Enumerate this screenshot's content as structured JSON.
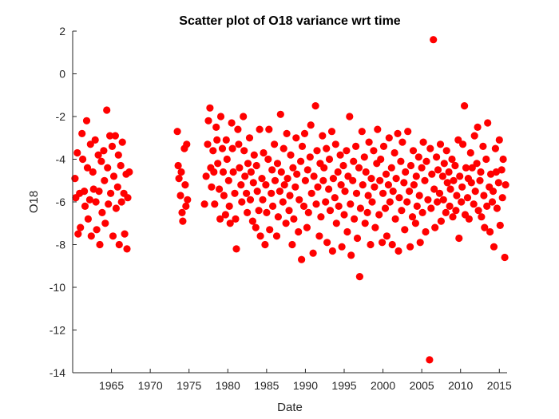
{
  "chart_data": {
    "type": "scatter",
    "title": "Scatter plot of O18 variance wrt time",
    "xlabel": "Date",
    "ylabel": "O18",
    "xlim": [
      1960,
      2016
    ],
    "ylim": [
      -14,
      2
    ],
    "x_ticks": [
      1965,
      1970,
      1975,
      1980,
      1985,
      1990,
      1995,
      2000,
      2005,
      2010,
      2015
    ],
    "y_ticks": [
      2,
      0,
      -2,
      -4,
      -6,
      -8,
      -10,
      -12,
      -14
    ],
    "grid": false,
    "marker_color": "#ff0000",
    "points": [
      [
        1960.3,
        -4.9
      ],
      [
        1960.4,
        -5.8
      ],
      [
        1960.6,
        -3.7
      ],
      [
        1960.7,
        -7.5
      ],
      [
        1960.9,
        -5.6
      ],
      [
        1961.0,
        -7.2
      ],
      [
        1961.2,
        -2.8
      ],
      [
        1961.3,
        -4.0
      ],
      [
        1961.5,
        -5.5
      ],
      [
        1961.6,
        -6.2
      ],
      [
        1961.8,
        -2.2
      ],
      [
        1961.9,
        -4.4
      ],
      [
        1962.0,
        -6.8
      ],
      [
        1962.2,
        -5.9
      ],
      [
        1962.3,
        -3.3
      ],
      [
        1962.4,
        -7.6
      ],
      [
        1962.6,
        -4.6
      ],
      [
        1962.7,
        -5.4
      ],
      [
        1962.9,
        -3.1
      ],
      [
        1963.0,
        -6.0
      ],
      [
        1963.1,
        -7.3
      ],
      [
        1963.3,
        -3.8
      ],
      [
        1963.4,
        -5.5
      ],
      [
        1963.5,
        -8.0
      ],
      [
        1963.7,
        -4.1
      ],
      [
        1963.8,
        -6.5
      ],
      [
        1964.0,
        -3.6
      ],
      [
        1964.1,
        -5.0
      ],
      [
        1964.2,
        -7.0
      ],
      [
        1964.4,
        -1.7
      ],
      [
        1964.5,
        -4.4
      ],
      [
        1964.6,
        -6.1
      ],
      [
        1964.8,
        -2.9
      ],
      [
        1964.9,
        -5.6
      ],
      [
        1965.1,
        -3.4
      ],
      [
        1965.2,
        -7.6
      ],
      [
        1965.3,
        -4.8
      ],
      [
        1965.5,
        -2.9
      ],
      [
        1965.6,
        -6.3
      ],
      [
        1965.8,
        -5.3
      ],
      [
        1965.9,
        -3.8
      ],
      [
        1966.0,
        -8.0
      ],
      [
        1966.2,
        -4.3
      ],
      [
        1966.3,
        -6.0
      ],
      [
        1966.4,
        -3.2
      ],
      [
        1966.6,
        -5.6
      ],
      [
        1966.7,
        -7.5
      ],
      [
        1966.9,
        -4.7
      ],
      [
        1967.0,
        -8.2
      ],
      [
        1967.1,
        -5.8
      ],
      [
        1967.3,
        -4.6
      ],
      [
        1973.5,
        -2.7
      ],
      [
        1973.6,
        -4.3
      ],
      [
        1973.7,
        -4.9
      ],
      [
        1973.9,
        -5.7
      ],
      [
        1974.0,
        -4.6
      ],
      [
        1974.1,
        -6.5
      ],
      [
        1974.2,
        -6.9
      ],
      [
        1974.4,
        -3.5
      ],
      [
        1974.5,
        -5.2
      ],
      [
        1974.6,
        -6.2
      ],
      [
        1974.7,
        -3.3
      ],
      [
        1974.8,
        -5.9
      ],
      [
        1977.0,
        -6.1
      ],
      [
        1977.2,
        -4.8
      ],
      [
        1977.4,
        -3.3
      ],
      [
        1977.5,
        -2.2
      ],
      [
        1977.7,
        -1.6
      ],
      [
        1977.8,
        -4.4
      ],
      [
        1977.9,
        -5.3
      ],
      [
        1978.1,
        -3.6
      ],
      [
        1978.2,
        -4.6
      ],
      [
        1978.3,
        -6.1
      ],
      [
        1978.5,
        -2.5
      ],
      [
        1978.6,
        -3.1
      ],
      [
        1978.7,
        -4.2
      ],
      [
        1978.9,
        -5.4
      ],
      [
        1979.0,
        -6.8
      ],
      [
        1979.1,
        -2.0
      ],
      [
        1979.3,
        -3.5
      ],
      [
        1979.4,
        -4.6
      ],
      [
        1979.5,
        -5.7
      ],
      [
        1979.7,
        -6.6
      ],
      [
        1979.8,
        -3.1
      ],
      [
        1979.9,
        -4.0
      ],
      [
        1980.1,
        -5.0
      ],
      [
        1980.2,
        -6.2
      ],
      [
        1980.3,
        -7.0
      ],
      [
        1980.5,
        -2.3
      ],
      [
        1980.6,
        -3.5
      ],
      [
        1980.7,
        -4.6
      ],
      [
        1980.9,
        -5.6
      ],
      [
        1981.0,
        -6.8
      ],
      [
        1981.1,
        -8.2
      ],
      [
        1981.3,
        -2.6
      ],
      [
        1981.4,
        -3.3
      ],
      [
        1981.5,
        -4.4
      ],
      [
        1981.7,
        -5.2
      ],
      [
        1981.8,
        -6.0
      ],
      [
        1982.0,
        -2.0
      ],
      [
        1982.1,
        -3.6
      ],
      [
        1982.2,
        -4.8
      ],
      [
        1982.4,
        -5.6
      ],
      [
        1982.5,
        -6.5
      ],
      [
        1982.6,
        -4.2
      ],
      [
        1982.8,
        -3.0
      ],
      [
        1982.9,
        -5.9
      ],
      [
        1983.0,
        -4.6
      ],
      [
        1983.2,
        -6.9
      ],
      [
        1983.3,
        -5.1
      ],
      [
        1983.4,
        -3.8
      ],
      [
        1983.6,
        -7.2
      ],
      [
        1983.7,
        -4.3
      ],
      [
        1983.8,
        -5.5
      ],
      [
        1984.0,
        -6.4
      ],
      [
        1984.1,
        -2.6
      ],
      [
        1984.2,
        -7.6
      ],
      [
        1984.4,
        -4.9
      ],
      [
        1984.5,
        -5.9
      ],
      [
        1984.6,
        -3.7
      ],
      [
        1984.8,
        -8.0
      ],
      [
        1984.9,
        -5.2
      ],
      [
        1985.0,
        -6.5
      ],
      [
        1985.2,
        -4.0
      ],
      [
        1985.3,
        -2.6
      ],
      [
        1985.4,
        -7.3
      ],
      [
        1985.6,
        -5.6
      ],
      [
        1985.7,
        -4.5
      ],
      [
        1985.8,
        -6.2
      ],
      [
        1986.0,
        -3.3
      ],
      [
        1986.1,
        -5.0
      ],
      [
        1986.3,
        -7.6
      ],
      [
        1986.4,
        -4.2
      ],
      [
        1986.5,
        -6.7
      ],
      [
        1986.7,
        -5.5
      ],
      [
        1986.8,
        -1.9
      ],
      [
        1986.9,
        -4.6
      ],
      [
        1987.1,
        -6.0
      ],
      [
        1987.2,
        -3.5
      ],
      [
        1987.3,
        -5.2
      ],
      [
        1987.5,
        -7.0
      ],
      [
        1987.6,
        -2.8
      ],
      [
        1987.7,
        -4.9
      ],
      [
        1987.9,
        -6.4
      ],
      [
        1988.0,
        -5.7
      ],
      [
        1988.1,
        -3.8
      ],
      [
        1988.3,
        -8.0
      ],
      [
        1988.4,
        -4.4
      ],
      [
        1988.5,
        -6.8
      ],
      [
        1988.7,
        -5.3
      ],
      [
        1988.8,
        -3.0
      ],
      [
        1988.9,
        -4.7
      ],
      [
        1989.1,
        -7.4
      ],
      [
        1989.2,
        -5.9
      ],
      [
        1989.4,
        -4.1
      ],
      [
        1989.5,
        -8.7
      ],
      [
        1989.6,
        -3.4
      ],
      [
        1989.8,
        -6.2
      ],
      [
        1989.9,
        -2.8
      ],
      [
        1990.0,
        -5.0
      ],
      [
        1990.2,
        -7.2
      ],
      [
        1990.3,
        -4.5
      ],
      [
        1990.4,
        -6.5
      ],
      [
        1990.6,
        -3.9
      ],
      [
        1990.7,
        -2.4
      ],
      [
        1990.8,
        -5.6
      ],
      [
        1991.0,
        -8.4
      ],
      [
        1991.1,
        -4.8
      ],
      [
        1991.3,
        -1.5
      ],
      [
        1991.4,
        -6.1
      ],
      [
        1991.5,
        -3.6
      ],
      [
        1991.6,
        -5.3
      ],
      [
        1991.8,
        -7.6
      ],
      [
        1991.9,
        -4.2
      ],
      [
        1992.0,
        -6.7
      ],
      [
        1992.2,
        -2.9
      ],
      [
        1992.3,
        -5.0
      ],
      [
        1992.4,
        -4.4
      ],
      [
        1992.6,
        -6.0
      ],
      [
        1992.7,
        -3.5
      ],
      [
        1992.8,
        -7.9
      ],
      [
        1993.0,
        -5.4
      ],
      [
        1993.1,
        -4.0
      ],
      [
        1993.2,
        -6.4
      ],
      [
        1993.4,
        -2.7
      ],
      [
        1993.5,
        -8.3
      ],
      [
        1993.6,
        -4.9
      ],
      [
        1993.8,
        -5.8
      ],
      [
        1993.9,
        -3.3
      ],
      [
        1994.0,
        -7.0
      ],
      [
        1994.2,
        -4.6
      ],
      [
        1994.3,
        -6.2
      ],
      [
        1994.5,
        -3.8
      ],
      [
        1994.6,
        -5.2
      ],
      [
        1994.7,
        -8.1
      ],
      [
        1994.9,
        -4.3
      ],
      [
        1995.0,
        -6.6
      ],
      [
        1995.1,
        -5.5
      ],
      [
        1995.3,
        -3.6
      ],
      [
        1995.4,
        -7.4
      ],
      [
        1995.5,
        -4.8
      ],
      [
        1995.7,
        -2.0
      ],
      [
        1995.8,
        -6.1
      ],
      [
        1995.9,
        -8.5
      ],
      [
        1996.1,
        -5.0
      ],
      [
        1996.2,
        -4.1
      ],
      [
        1996.3,
        -6.8
      ],
      [
        1996.5,
        -3.4
      ],
      [
        1996.6,
        -5.6
      ],
      [
        1996.7,
        -7.7
      ],
      [
        1996.9,
        -4.4
      ],
      [
        1997.0,
        -9.5
      ],
      [
        1997.1,
        -6.3
      ],
      [
        1997.3,
        -2.7
      ],
      [
        1997.4,
        -5.2
      ],
      [
        1997.6,
        -3.9
      ],
      [
        1997.7,
        -7.0
      ],
      [
        1997.8,
        -4.6
      ],
      [
        1998.0,
        -6.5
      ],
      [
        1998.1,
        -5.7
      ],
      [
        1998.2,
        -3.2
      ],
      [
        1998.4,
        -8.0
      ],
      [
        1998.5,
        -4.9
      ],
      [
        1998.6,
        -6.0
      ],
      [
        1998.8,
        -3.6
      ],
      [
        1998.9,
        -5.3
      ],
      [
        1999.0,
        -7.2
      ],
      [
        1999.2,
        -4.2
      ],
      [
        1999.3,
        -2.6
      ],
      [
        1999.5,
        -6.6
      ],
      [
        1999.6,
        -5.0
      ],
      [
        1999.7,
        -4.0
      ],
      [
        1999.9,
        -7.9
      ],
      [
        2000.0,
        -5.6
      ],
      [
        2000.1,
        -3.4
      ],
      [
        2000.3,
        -6.3
      ],
      [
        2000.4,
        -4.7
      ],
      [
        2000.5,
        -7.6
      ],
      [
        2000.7,
        -5.2
      ],
      [
        2000.8,
        -3.0
      ],
      [
        2000.9,
        -6.0
      ],
      [
        2001.1,
        -4.4
      ],
      [
        2001.2,
        -8.0
      ],
      [
        2001.3,
        -5.5
      ],
      [
        2001.5,
        -3.7
      ],
      [
        2001.6,
        -6.8
      ],
      [
        2001.7,
        -4.9
      ],
      [
        2001.9,
        -2.8
      ],
      [
        2002.0,
        -8.3
      ],
      [
        2002.1,
        -5.8
      ],
      [
        2002.3,
        -4.1
      ],
      [
        2002.4,
        -6.4
      ],
      [
        2002.5,
        -3.2
      ],
      [
        2002.7,
        -5.1
      ],
      [
        2002.8,
        -7.3
      ],
      [
        2002.9,
        -4.6
      ],
      [
        2003.1,
        -6.0
      ],
      [
        2003.2,
        -2.7
      ],
      [
        2003.4,
        -5.5
      ],
      [
        2003.5,
        -8.1
      ],
      [
        2003.6,
        -4.3
      ],
      [
        2003.8,
        -6.7
      ],
      [
        2003.9,
        -3.6
      ],
      [
        2004.0,
        -5.2
      ],
      [
        2004.2,
        -7.0
      ],
      [
        2004.3,
        -4.8
      ],
      [
        2004.4,
        -6.2
      ],
      [
        2004.6,
        -3.9
      ],
      [
        2004.7,
        -5.7
      ],
      [
        2004.8,
        -7.9
      ],
      [
        2005.0,
        -4.4
      ],
      [
        2005.1,
        -6.5
      ],
      [
        2005.2,
        -3.2
      ],
      [
        2005.4,
        -5.0
      ],
      [
        2005.5,
        -7.4
      ],
      [
        2005.6,
        -4.1
      ],
      [
        2005.8,
        -5.9
      ],
      [
        2006.0,
        -13.4
      ],
      [
        2006.1,
        -3.5
      ],
      [
        2006.2,
        -6.3
      ],
      [
        2006.3,
        -4.7
      ],
      [
        2006.5,
        1.6
      ],
      [
        2006.6,
        -5.4
      ],
      [
        2006.7,
        -7.2
      ],
      [
        2006.9,
        -3.9
      ],
      [
        2007.0,
        -6.0
      ],
      [
        2007.1,
        -4.5
      ],
      [
        2007.3,
        -5.6
      ],
      [
        2007.4,
        -3.3
      ],
      [
        2007.5,
        -6.9
      ],
      [
        2007.7,
        -4.8
      ],
      [
        2007.8,
        -5.9
      ],
      [
        2007.9,
        -4.2
      ],
      [
        2008.1,
        -6.5
      ],
      [
        2008.2,
        -3.6
      ],
      [
        2008.3,
        -5.1
      ],
      [
        2008.5,
        -4.6
      ],
      [
        2008.6,
        -6.2
      ],
      [
        2008.7,
        -5.4
      ],
      [
        2008.9,
        -4.0
      ],
      [
        2009.0,
        -6.7
      ],
      [
        2009.1,
        -5.0
      ],
      [
        2009.3,
        -4.3
      ],
      [
        2009.4,
        -6.4
      ],
      [
        2009.5,
        -5.7
      ],
      [
        2009.7,
        -3.1
      ],
      [
        2009.8,
        -7.7
      ],
      [
        2009.9,
        -4.8
      ],
      [
        2010.1,
        -6.0
      ],
      [
        2010.2,
        -5.3
      ],
      [
        2010.3,
        -3.3
      ],
      [
        2010.5,
        -1.5
      ],
      [
        2010.6,
        -6.6
      ],
      [
        2010.7,
        -4.4
      ],
      [
        2010.9,
        -5.8
      ],
      [
        2011.0,
        -4.9
      ],
      [
        2011.1,
        -6.8
      ],
      [
        2011.3,
        -3.7
      ],
      [
        2011.4,
        -5.1
      ],
      [
        2011.5,
        -4.4
      ],
      [
        2011.7,
        -6.1
      ],
      [
        2011.8,
        -2.9
      ],
      [
        2011.9,
        -5.5
      ],
      [
        2012.1,
        -4.2
      ],
      [
        2012.2,
        -2.5
      ],
      [
        2012.3,
        -6.4
      ],
      [
        2012.5,
        -5.0
      ],
      [
        2012.6,
        -4.6
      ],
      [
        2012.7,
        -6.7
      ],
      [
        2012.9,
        -3.4
      ],
      [
        2013.0,
        -5.7
      ],
      [
        2013.1,
        -7.2
      ],
      [
        2013.3,
        -4.0
      ],
      [
        2013.4,
        -6.2
      ],
      [
        2013.5,
        -2.3
      ],
      [
        2013.7,
        -5.3
      ],
      [
        2013.8,
        -7.4
      ],
      [
        2013.9,
        -4.7
      ],
      [
        2014.1,
        -6.0
      ],
      [
        2014.2,
        -5.5
      ],
      [
        2014.3,
        -8.1
      ],
      [
        2014.5,
        -3.5
      ],
      [
        2014.6,
        -4.6
      ],
      [
        2014.7,
        -6.3
      ],
      [
        2014.9,
        -5.1
      ],
      [
        2015.0,
        -3.1
      ],
      [
        2015.1,
        -7.1
      ],
      [
        2015.3,
        -4.5
      ],
      [
        2015.4,
        -5.8
      ],
      [
        2015.5,
        -4.0
      ],
      [
        2015.7,
        -8.6
      ],
      [
        2015.8,
        -5.2
      ]
    ]
  }
}
